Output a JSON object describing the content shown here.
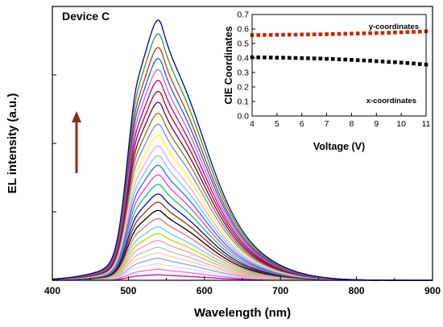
{
  "chart_data": [
    {
      "type": "line",
      "panel_label": "Device C",
      "xlabel": "Wavelength (nm)",
      "ylabel": "EL intensity (a.u.)",
      "xlim": [
        400,
        900
      ],
      "ylim": [
        0,
        1.0
      ],
      "x_ticks": [
        400,
        500,
        600,
        700,
        800,
        900
      ],
      "y_ticks_labeled": false,
      "grid": false,
      "legend": "none",
      "annotation": "upward arrow indicating increasing voltage",
      "arrow_color": "#8B2E1A",
      "series_shape": {
        "peaks_nm": [
          512,
          545
        ],
        "peak_ratio": [
          0.99,
          1.0
        ],
        "onset_nm": 465,
        "tail_end_nm": 800
      },
      "series": [
        {
          "color": "#cc00cc",
          "peak": 0.02
        },
        {
          "color": "#ff66cc",
          "peak": 0.04
        },
        {
          "color": "#dddddd",
          "peak": 0.06
        },
        {
          "color": "#9999ff",
          "peak": 0.08
        },
        {
          "color": "#ffcc99",
          "peak": 0.1
        },
        {
          "color": "#bbbbbb",
          "peak": 0.12
        },
        {
          "color": "#ff9999",
          "peak": 0.145
        },
        {
          "color": "#cccc00",
          "peak": 0.17
        },
        {
          "color": "#66ccff",
          "peak": 0.195
        },
        {
          "color": "#ff6666",
          "peak": 0.225
        },
        {
          "color": "#000000",
          "peak": 0.255
        },
        {
          "color": "#993300",
          "peak": 0.285
        },
        {
          "color": "#0000cc",
          "peak": 0.315
        },
        {
          "color": "#00cc66",
          "peak": 0.35
        },
        {
          "color": "#ff33cc",
          "peak": 0.385
        },
        {
          "color": "#3366ff",
          "peak": 0.42
        },
        {
          "color": "#66ccee",
          "peak": 0.455
        },
        {
          "color": "#ff99ff",
          "peak": 0.49
        },
        {
          "color": "#ffff00",
          "peak": 0.53
        },
        {
          "color": "#8080ff",
          "peak": 0.57
        },
        {
          "color": "#808000",
          "peak": 0.61
        },
        {
          "color": "#660066",
          "peak": 0.65
        },
        {
          "color": "#cc0000",
          "peak": 0.69
        },
        {
          "color": "#aa00aa",
          "peak": 0.73
        },
        {
          "color": "#cc66cc",
          "peak": 0.77
        },
        {
          "color": "#0066ff",
          "peak": 0.81
        },
        {
          "color": "#cc3300",
          "peak": 0.85
        },
        {
          "color": "#339933",
          "peak": 0.9
        },
        {
          "color": "#000099",
          "peak": 0.95
        }
      ]
    },
    {
      "type": "scatter",
      "xlabel": "Voltage (V)",
      "ylabel": "CIE Coordinates",
      "xlim": [
        4,
        11
      ],
      "ylim": [
        0.0,
        0.7
      ],
      "x_ticks": [
        4,
        5,
        6,
        7,
        8,
        9,
        10,
        11
      ],
      "y_ticks": [
        0.0,
        0.1,
        0.2,
        0.3,
        0.4,
        0.5,
        0.6,
        0.7
      ],
      "grid": false,
      "series": [
        {
          "name": "y-coordinates",
          "color": "#cc2200",
          "x": [
            4.0,
            4.25,
            4.5,
            4.75,
            5.0,
            5.25,
            5.5,
            5.75,
            6.0,
            6.25,
            6.5,
            6.75,
            7.0,
            7.25,
            7.5,
            7.75,
            8.0,
            8.25,
            8.5,
            8.75,
            9.0,
            9.25,
            9.5,
            9.75,
            10.0,
            10.25,
            10.5,
            10.75,
            11.0
          ],
          "values": [
            0.558,
            0.558,
            0.559,
            0.559,
            0.56,
            0.56,
            0.561,
            0.561,
            0.562,
            0.562,
            0.563,
            0.563,
            0.564,
            0.565,
            0.566,
            0.567,
            0.568,
            0.569,
            0.57,
            0.571,
            0.572,
            0.573,
            0.574,
            0.576,
            0.577,
            0.579,
            0.58,
            0.582,
            0.584
          ]
        },
        {
          "name": "x-coordinates",
          "color": "#000000",
          "x": [
            4.0,
            4.25,
            4.5,
            4.75,
            5.0,
            5.25,
            5.5,
            5.75,
            6.0,
            6.25,
            6.5,
            6.75,
            7.0,
            7.25,
            7.5,
            7.75,
            8.0,
            8.25,
            8.5,
            8.75,
            9.0,
            9.25,
            9.5,
            9.75,
            10.0,
            10.25,
            10.5,
            10.75,
            11.0
          ],
          "values": [
            0.405,
            0.404,
            0.404,
            0.403,
            0.402,
            0.402,
            0.401,
            0.4,
            0.399,
            0.398,
            0.397,
            0.396,
            0.394,
            0.393,
            0.391,
            0.389,
            0.387,
            0.385,
            0.383,
            0.381,
            0.378,
            0.376,
            0.373,
            0.371,
            0.368,
            0.365,
            0.362,
            0.358,
            0.355
          ]
        }
      ]
    }
  ]
}
